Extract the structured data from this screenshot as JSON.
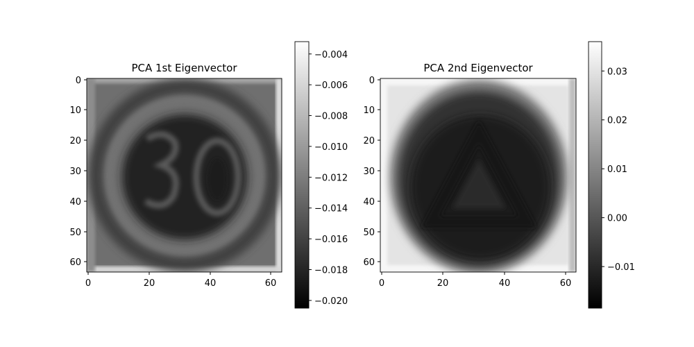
{
  "chart_data": [
    {
      "type": "heatmap",
      "title": "PCA 1st Eigenvector",
      "colormap": "gray",
      "x_ticks": [
        0,
        20,
        40,
        60
      ],
      "y_ticks": [
        0,
        10,
        20,
        30,
        40,
        50,
        60
      ],
      "xlim": [
        -0.5,
        63.5
      ],
      "ylim": [
        63.5,
        -0.5
      ],
      "image_size": [
        64,
        64
      ],
      "colorbar": {
        "range": [
          -0.0205,
          -0.0032
        ],
        "ticks": [
          -0.02,
          -0.018,
          -0.016,
          -0.014,
          -0.012,
          -0.01,
          -0.008,
          -0.006,
          -0.004
        ],
        "tick_labels": [
          "−0.020",
          "−0.018",
          "−0.016",
          "−0.014",
          "−0.012",
          "−0.010",
          "−0.008",
          "−0.006",
          "−0.004"
        ]
      }
    },
    {
      "type": "heatmap",
      "title": "PCA 2nd Eigenvector",
      "colormap": "gray",
      "x_ticks": [
        0,
        20,
        40,
        60
      ],
      "y_ticks": [
        0,
        10,
        20,
        30,
        40,
        50,
        60
      ],
      "xlim": [
        -0.5,
        63.5
      ],
      "ylim": [
        63.5,
        -0.5
      ],
      "image_size": [
        64,
        64
      ],
      "colorbar": {
        "range": [
          -0.0185,
          0.036
        ],
        "ticks": [
          -0.01,
          0.0,
          0.01,
          0.02,
          0.03
        ],
        "tick_labels": [
          "−0.01",
          "0.00",
          "0.01",
          "0.02",
          "0.03"
        ]
      }
    }
  ]
}
